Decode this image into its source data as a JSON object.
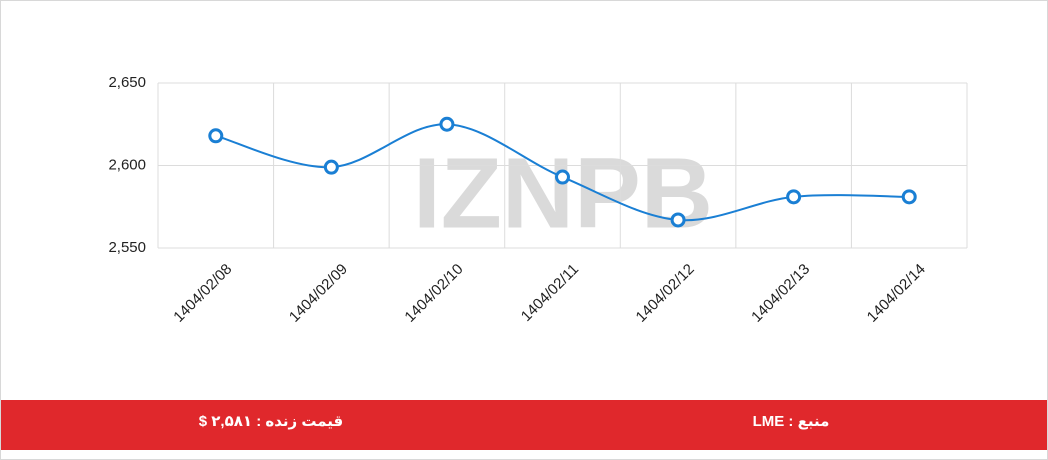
{
  "chart_data": {
    "type": "line",
    "categories": [
      "1404/02/08",
      "1404/02/09",
      "1404/02/10",
      "1404/02/11",
      "1404/02/12",
      "1404/02/13",
      "1404/02/14"
    ],
    "values": [
      2618,
      2599,
      2625,
      2593,
      2567,
      2581,
      2581
    ],
    "color": "#1a7fd4",
    "ylim": [
      2550,
      2650
    ],
    "yticks": [
      {
        "value": 2550,
        "label": "2,550"
      },
      {
        "value": 2600,
        "label": "2,600"
      },
      {
        "value": 2650,
        "label": "2,650"
      }
    ],
    "grid": true,
    "watermark": "IZNPB"
  },
  "footer": {
    "price": "قیمت زنده : ۲,۵۸۱ $",
    "source": "منبع : LME"
  }
}
